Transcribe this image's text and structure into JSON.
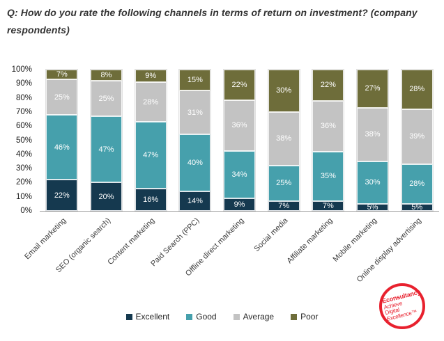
{
  "title": "Q: How do you rate the following channels in terms of return on investment? (company respondents)",
  "colors": {
    "excellent": "#15394f",
    "good": "#46a0ac",
    "average": "#c3c3c3",
    "poor": "#6e6d3a",
    "logo_red": "#e8212e"
  },
  "chart_data": {
    "type": "bar",
    "stacked": true,
    "units": "%",
    "title": "Q: How do you rate the following channels in terms of return on investment? (company respondents)",
    "categories": [
      "Email marketing",
      "SEO (organic search)",
      "Content marketing",
      "Paid Search (PPC)",
      "Offline direct marketing",
      "Social media",
      "Affiliate marketing",
      "Mobile marketing",
      "Online display advertising"
    ],
    "series": [
      {
        "name": "Excellent",
        "color_key": "excellent",
        "values": [
          22,
          20,
          16,
          14,
          9,
          7,
          7,
          5,
          5
        ]
      },
      {
        "name": "Good",
        "color_key": "good",
        "values": [
          46,
          47,
          47,
          40,
          34,
          25,
          35,
          30,
          28
        ]
      },
      {
        "name": "Average",
        "color_key": "average",
        "values": [
          25,
          25,
          28,
          31,
          36,
          38,
          36,
          38,
          39
        ]
      },
      {
        "name": "Poor",
        "color_key": "poor",
        "values": [
          7,
          8,
          9,
          15,
          22,
          30,
          22,
          27,
          28
        ]
      }
    ],
    "y_ticks": [
      "100%",
      "90%",
      "80%",
      "70%",
      "60%",
      "50%",
      "40%",
      "30%",
      "20%",
      "10%",
      "0%"
    ],
    "ylim": [
      0,
      100
    ],
    "grid": false,
    "legend_position": "bottom",
    "data_label_format": "{value}%"
  },
  "logo": {
    "line1": "Econsultancy",
    "line2": "Achieve",
    "line3": "Digital",
    "line4": "Excellence™"
  }
}
